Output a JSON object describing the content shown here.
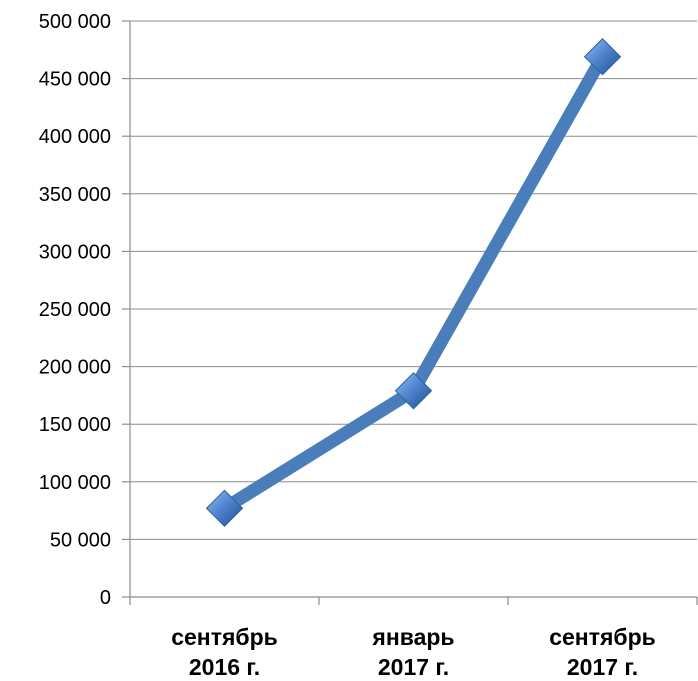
{
  "chart_data": {
    "type": "line",
    "categories": [
      [
        "сентябрь",
        "2016 г."
      ],
      [
        "январь",
        "2017 г."
      ],
      [
        "сентябрь",
        "2017 г."
      ]
    ],
    "series": [
      {
        "values": [
          77000,
          179000,
          469000
        ],
        "color": "#4a7ebb",
        "marker": "diamond"
      }
    ],
    "ylim": [
      0,
      500000
    ],
    "yticks": [
      0,
      50000,
      100000,
      150000,
      200000,
      250000,
      300000,
      350000,
      400000,
      450000,
      500000
    ],
    "ytick_labels": [
      "0",
      "50 000",
      "100 000",
      "150 000",
      "200 000",
      "250 000",
      "300 000",
      "350 000",
      "400 000",
      "450 000",
      "500 000"
    ],
    "grid": true,
    "legend": false
  }
}
